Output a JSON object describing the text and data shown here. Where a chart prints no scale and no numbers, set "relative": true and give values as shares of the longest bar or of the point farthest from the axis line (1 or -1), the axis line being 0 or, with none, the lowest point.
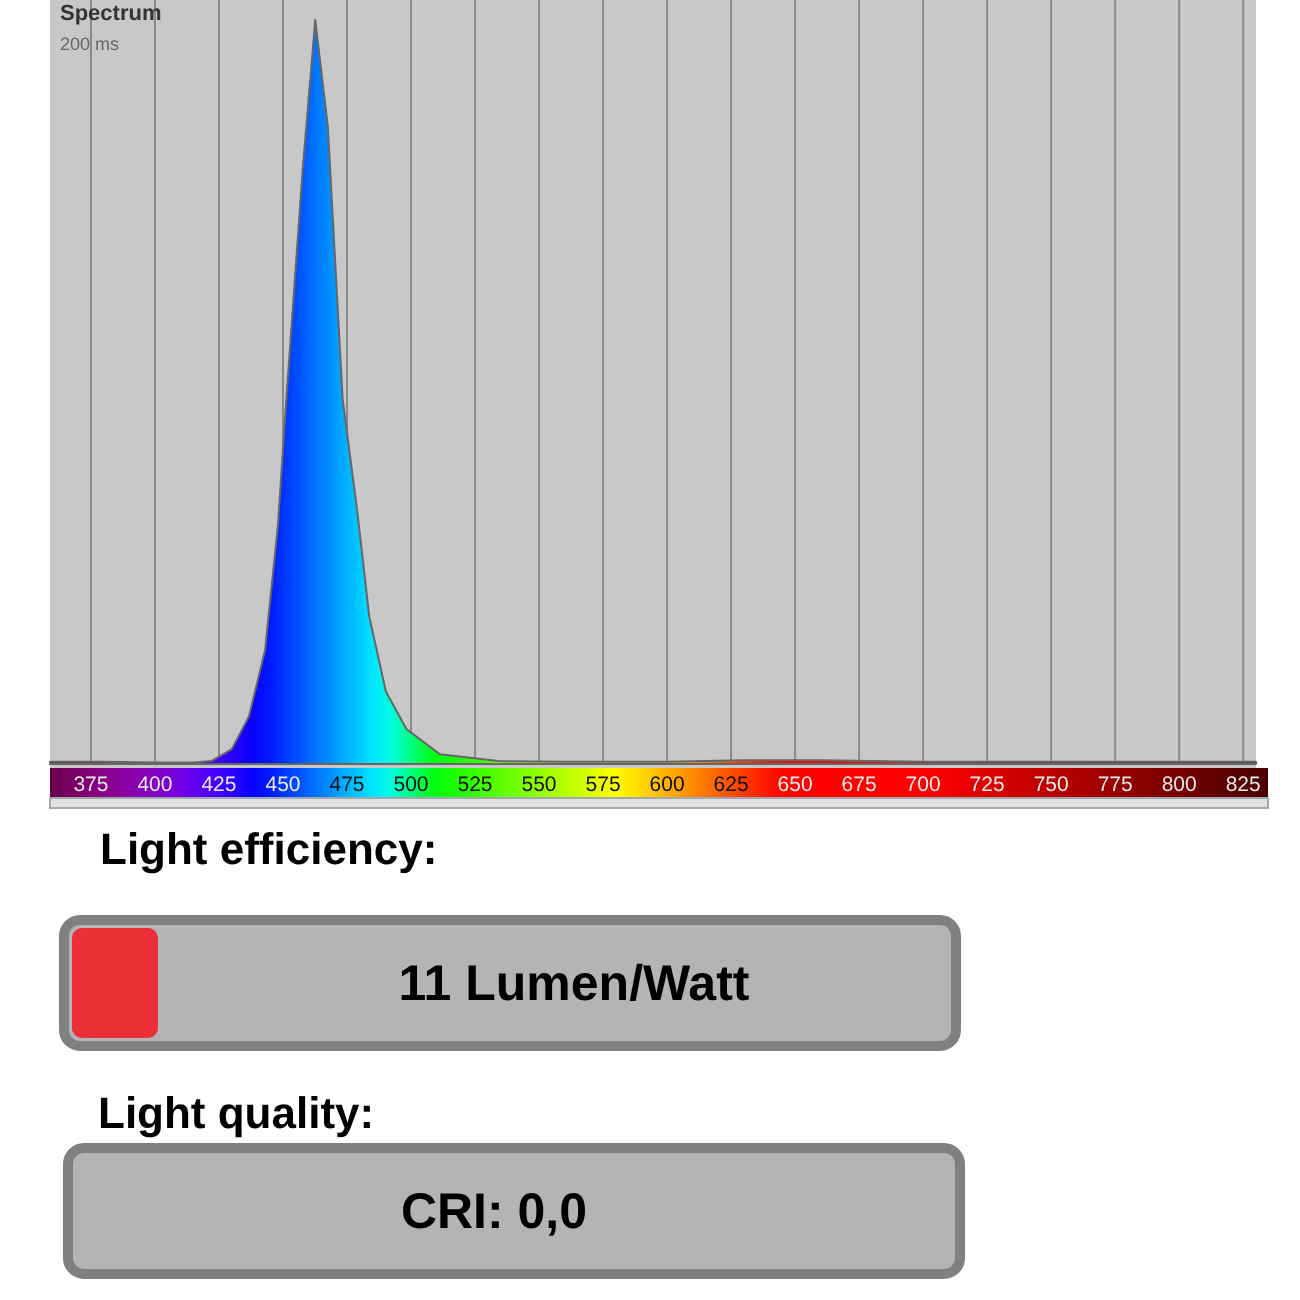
{
  "chart_data": [
    {
      "type": "area",
      "title": "Spectrum",
      "subtitle": "200 ms",
      "relative": true,
      "grid": "x",
      "tick_labels": "x",
      "xlim": [
        359,
        830
      ],
      "xticks": [
        375,
        400,
        425,
        450,
        475,
        500,
        525,
        550,
        575,
        600,
        625,
        650,
        675,
        700,
        725,
        750,
        775,
        800,
        825
      ],
      "x": [
        359,
        380,
        400,
        415,
        422,
        430,
        436.7,
        443,
        448,
        451.3,
        457.7,
        462.6,
        467.5,
        473.3,
        478.9,
        483.7,
        490.2,
        498.2,
        511.3,
        534,
        560,
        600,
        630,
        660,
        700,
        750,
        800,
        830
      ],
      "series": [
        {
          "values": [
            0.003,
            0.003,
            0.002,
            0.002,
            0.004,
            0.02,
            0.064,
            0.153,
            0.32,
            0.49,
            0.8,
            1,
            0.857,
            0.49,
            0.343,
            0.198,
            0.097,
            0.047,
            0.013,
            0.004,
            0.003,
            0.003,
            0.005,
            0.005,
            0.003,
            0.003,
            0.003,
            0.003
          ]
        }
      ]
    },
    {
      "type": "other",
      "annotations": [
        "Light efficiency:",
        "11 Lumen/Watt",
        "Light quality:",
        "CRI: 0,0"
      ]
    }
  ]
}
